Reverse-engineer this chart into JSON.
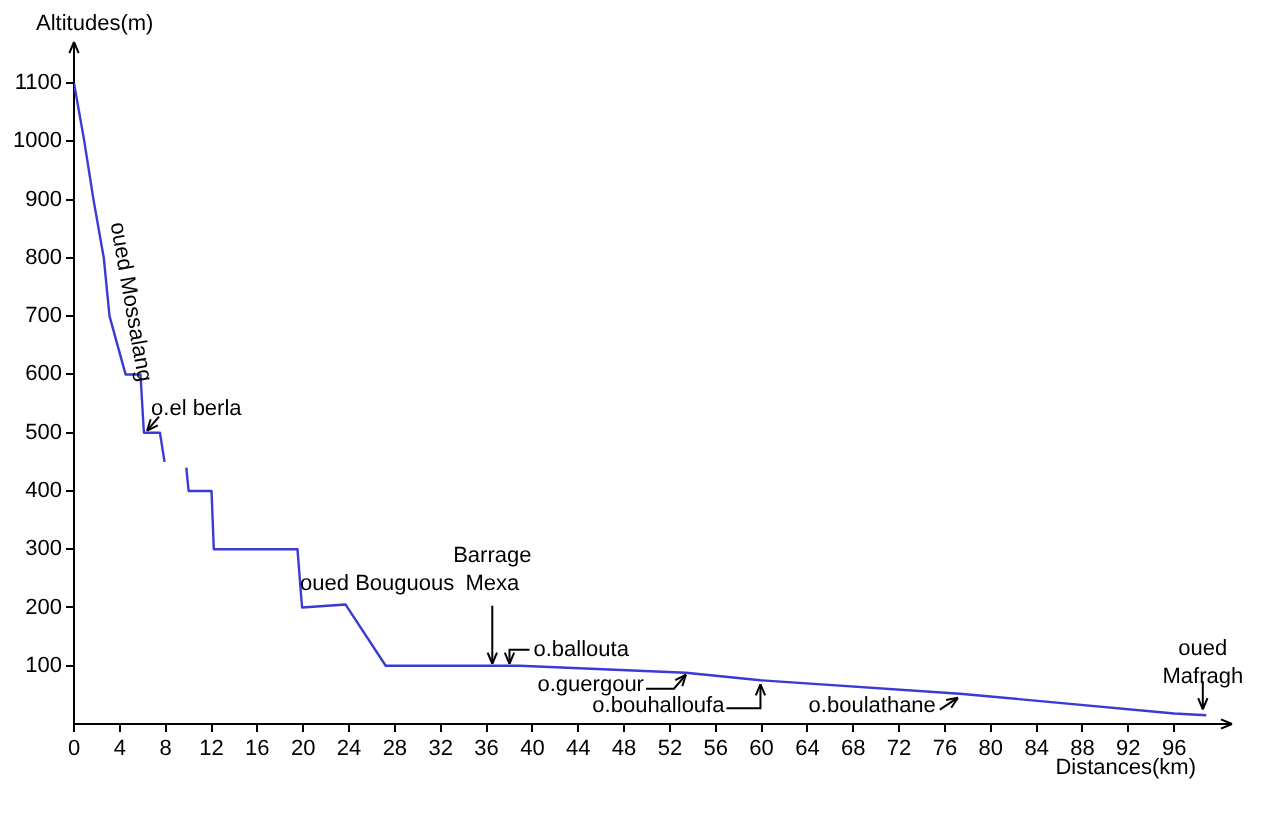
{
  "chart_data": {
    "type": "line",
    "xlabel": "Distances(km)",
    "ylabel": "Altitudes(m)",
    "x": [
      0,
      0.9,
      1.7,
      2.6,
      3.1,
      4.5,
      5.8,
      6.1,
      7.5,
      7.9,
      8.9,
      9.8,
      10,
      12,
      12.2,
      19.5,
      19.9,
      23.7,
      27.2,
      38.9,
      53.4,
      59.9,
      77.3,
      96,
      98.8
    ],
    "values": [
      1100,
      1000,
      900,
      800,
      700,
      600,
      600,
      500,
      500,
      450,
      null,
      440,
      400,
      400,
      300,
      300,
      200,
      205,
      100,
      100,
      88,
      75,
      52,
      18,
      15
    ],
    "color": "#3a3ad4",
    "xlim": [
      0,
      100
    ],
    "ylim": [
      0,
      1150
    ],
    "xticks": [
      0,
      4,
      8,
      12,
      16,
      20,
      24,
      28,
      32,
      36,
      40,
      44,
      48,
      52,
      56,
      60,
      64,
      68,
      72,
      76,
      80,
      84,
      88,
      92,
      96
    ],
    "yticks": [
      100,
      200,
      300,
      400,
      500,
      600,
      700,
      800,
      900,
      1000,
      1100
    ],
    "grid": false,
    "legend": false,
    "marker": "none",
    "line_style": "solid",
    "annotations": [
      {
        "text": "oued Mossalang",
        "x": 3,
        "y": 800
      },
      {
        "text": "o.el berla",
        "x": 6.2,
        "y": 500
      },
      {
        "text": "oued Bouguous",
        "x": 22,
        "y": 202
      },
      {
        "text": "Barrage Mexa",
        "x": 36.5,
        "y": 100
      },
      {
        "text": "o.ballouta",
        "x": 38,
        "y": 100
      },
      {
        "text": "o.guergour",
        "x": 53.4,
        "y": 88
      },
      {
        "text": "o.bouhalloufa",
        "x": 59.9,
        "y": 75
      },
      {
        "text": "o.boulathane",
        "x": 77.3,
        "y": 52
      },
      {
        "text": "oued Mafragh",
        "x": 98.5,
        "y": 15
      }
    ]
  }
}
